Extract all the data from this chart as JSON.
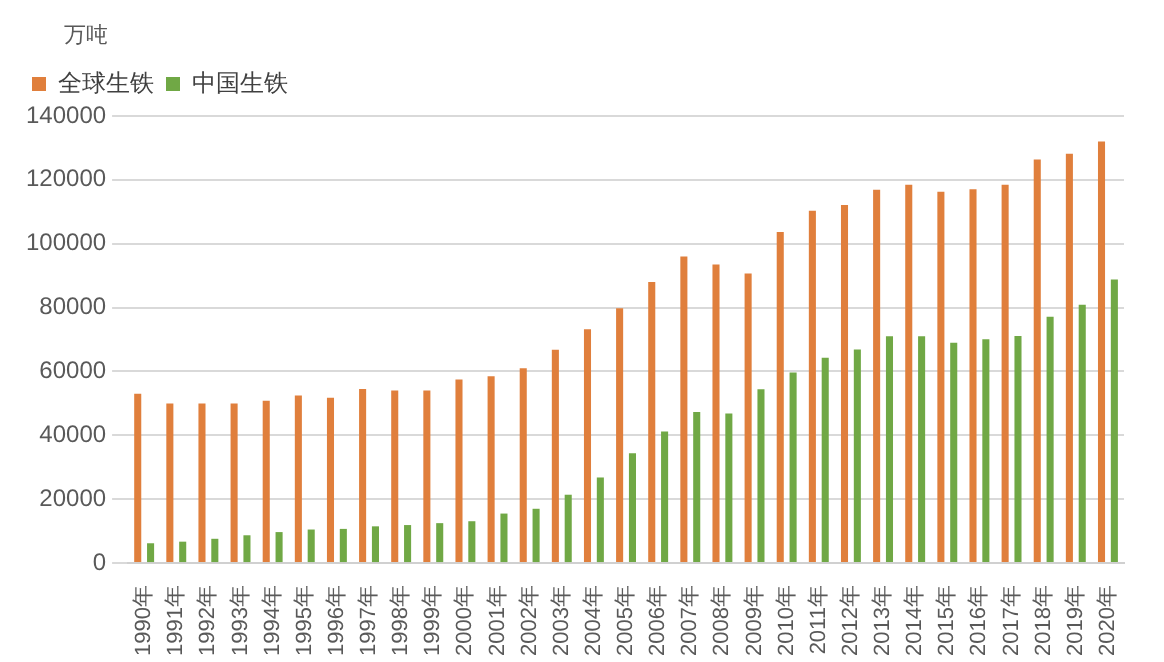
{
  "chart_data": {
    "type": "bar",
    "ylabel": "万吨",
    "categories": [
      "1990年",
      "1991年",
      "1992年",
      "1993年",
      "1994年",
      "1995年",
      "1996年",
      "1997年",
      "1998年",
      "1999年",
      "2000年",
      "2001年",
      "2002年",
      "2003年",
      "2004年",
      "2005年",
      "2006年",
      "2007年",
      "2008年",
      "2009年",
      "2010年",
      "2011年",
      "2012年",
      "2013年",
      "2014年",
      "2015年",
      "2016年",
      "2017年",
      "2018年",
      "2019年",
      "2020年"
    ],
    "series": [
      {
        "name": "全球生铁",
        "color": "#e07f3c",
        "values": [
          53000,
          50000,
          50000,
          50000,
          50800,
          52500,
          51800,
          54500,
          54000,
          54000,
          57500,
          58500,
          61000,
          66800,
          73200,
          79800,
          88000,
          96000,
          93500,
          90700,
          103700,
          110300,
          112100,
          116900,
          118500,
          116300,
          117100,
          118500,
          126400,
          128200,
          132000
        ]
      },
      {
        "name": "中国生铁",
        "color": "#70a845",
        "values": [
          6200,
          6700,
          7600,
          8700,
          9700,
          10500,
          10700,
          11500,
          11900,
          12500,
          13100,
          15500,
          17000,
          21400,
          26800,
          34400,
          41200,
          47300,
          46800,
          54400,
          59700,
          64300,
          66900,
          71000,
          71000,
          69000,
          70100,
          71100,
          77100,
          80900,
          88800
        ]
      }
    ],
    "ylim": [
      0,
      140000
    ],
    "yticks": [
      0,
      20000,
      40000,
      60000,
      80000,
      100000,
      120000,
      140000
    ],
    "grid": "y",
    "legend": "top left"
  }
}
